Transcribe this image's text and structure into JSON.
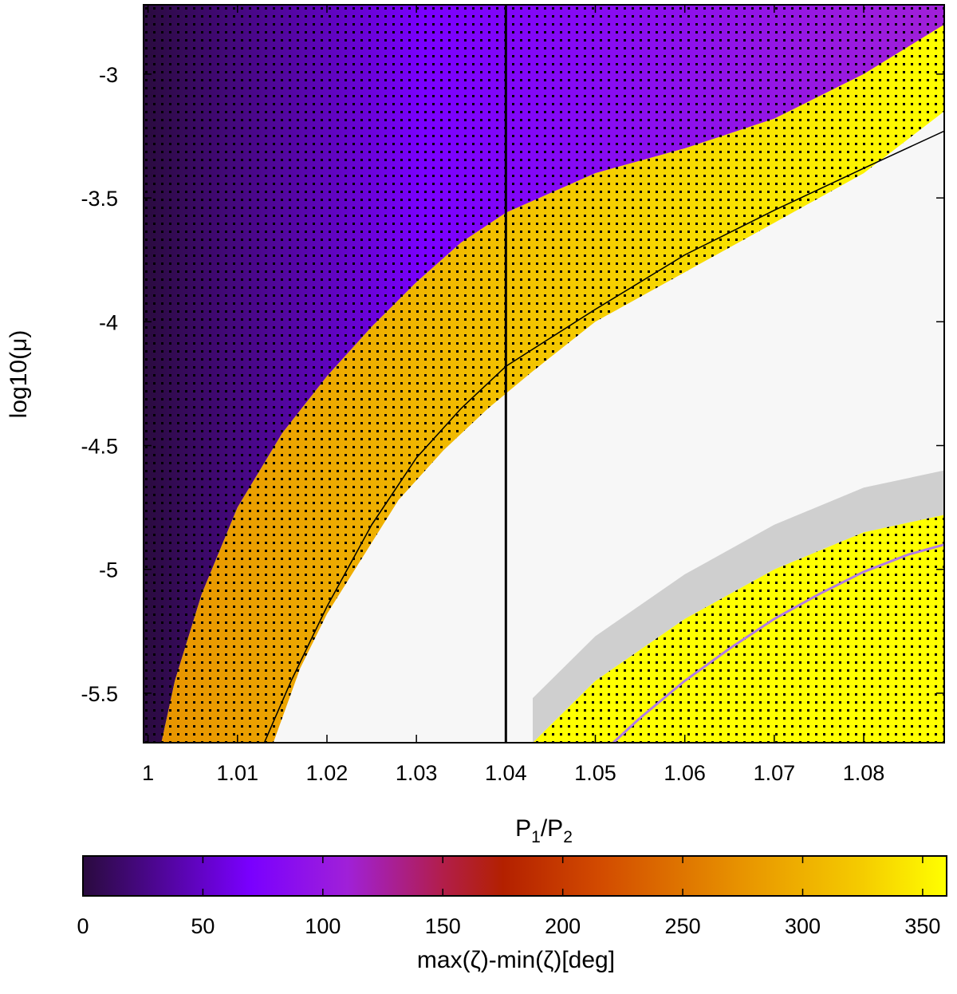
{
  "chart_data": {
    "type": "heatmap",
    "xlabel": "P",
    "xlabel_sub1": "1",
    "xlabel_mid": "/P",
    "xlabel_sub2": "2",
    "ylabel": "log10(μ)",
    "colorbar_label": "max(ζ)-min(ζ)[deg]",
    "xlim": [
      0.9995,
      1.089
    ],
    "ylim": [
      -5.7,
      -2.72
    ],
    "x_ticks": [
      1,
      1.01,
      1.02,
      1.03,
      1.04,
      1.05,
      1.06,
      1.07,
      1.08
    ],
    "x_tick_labels": [
      "1",
      "1.01",
      "1.02",
      "1.03",
      "1.04",
      "1.05",
      "1.06",
      "1.07",
      "1.08"
    ],
    "y_ticks": [
      -3,
      -3.5,
      -4,
      -4.5,
      -5,
      -5.5
    ],
    "y_tick_labels": [
      "-3",
      "-3.5",
      "-4",
      "-4.5",
      "-5",
      "-5.5"
    ],
    "colorbar_range": [
      0,
      360
    ],
    "colorbar_ticks": [
      0,
      50,
      100,
      150,
      200,
      250,
      300,
      350
    ],
    "colorbar_tick_labels": [
      "0",
      "50",
      "100",
      "150",
      "200",
      "250",
      "300",
      "350"
    ],
    "colormap_stops": [
      {
        "value": 0,
        "color": "#2a0b3e"
      },
      {
        "value": 70,
        "color": "#7a00ff"
      },
      {
        "value": 110,
        "color": "#a020d8"
      },
      {
        "value": 150,
        "color": "#b21e4a"
      },
      {
        "value": 175,
        "color": "#b32000"
      },
      {
        "value": 215,
        "color": "#d24a00"
      },
      {
        "value": 275,
        "color": "#e89400"
      },
      {
        "value": 325,
        "color": "#f5cc00"
      },
      {
        "value": 360,
        "color": "#ffff00"
      }
    ],
    "background_color": "#f7f7f7",
    "chaotic_color": "#c8c8c8",
    "vertical_line_x": 1.04,
    "black_curve": [
      [
        1.013,
        -5.7
      ],
      [
        1.016,
        -5.45
      ],
      [
        1.02,
        -5.15
      ],
      [
        1.025,
        -4.82
      ],
      [
        1.03,
        -4.55
      ],
      [
        1.035,
        -4.35
      ],
      [
        1.04,
        -4.18
      ],
      [
        1.05,
        -3.95
      ],
      [
        1.06,
        -3.73
      ],
      [
        1.07,
        -3.55
      ],
      [
        1.08,
        -3.38
      ],
      [
        1.089,
        -3.23
      ]
    ],
    "purple_curve": [
      [
        1.052,
        -5.7
      ],
      [
        1.055,
        -5.6
      ],
      [
        1.06,
        -5.45
      ],
      [
        1.065,
        -5.32
      ],
      [
        1.07,
        -5.2
      ],
      [
        1.075,
        -5.1
      ],
      [
        1.08,
        -5.01
      ],
      [
        1.085,
        -4.94
      ],
      [
        1.089,
        -4.9
      ]
    ],
    "purple_curve_color": "#b07ae6",
    "regions": {
      "libration_boundary": [
        [
          1.0015,
          -5.7
        ],
        [
          1.003,
          -5.45
        ],
        [
          1.006,
          -5.1
        ],
        [
          1.01,
          -4.75
        ],
        [
          1.015,
          -4.45
        ],
        [
          1.02,
          -4.22
        ],
        [
          1.025,
          -4.02
        ],
        [
          1.03,
          -3.84
        ],
        [
          1.035,
          -3.68
        ],
        [
          1.04,
          -3.56
        ],
        [
          1.05,
          -3.4
        ],
        [
          1.06,
          -3.3
        ],
        [
          1.07,
          -3.18
        ],
        [
          1.08,
          -3.0
        ],
        [
          1.089,
          -2.8
        ]
      ],
      "resonance_outer_edge": [
        [
          1.014,
          -5.7
        ],
        [
          1.017,
          -5.4
        ],
        [
          1.02,
          -5.18
        ],
        [
          1.024,
          -4.95
        ],
        [
          1.028,
          -4.72
        ],
        [
          1.033,
          -4.52
        ],
        [
          1.038,
          -4.35
        ],
        [
          1.043,
          -4.2
        ],
        [
          1.05,
          -4.0
        ],
        [
          1.06,
          -3.8
        ],
        [
          1.07,
          -3.6
        ],
        [
          1.08,
          -3.4
        ],
        [
          1.089,
          -3.15
        ]
      ],
      "second_island_top": [
        [
          1.043,
          -5.7
        ],
        [
          1.05,
          -5.45
        ],
        [
          1.06,
          -5.2
        ],
        [
          1.07,
          -5.0
        ],
        [
          1.08,
          -4.85
        ],
        [
          1.089,
          -4.78
        ]
      ]
    }
  }
}
